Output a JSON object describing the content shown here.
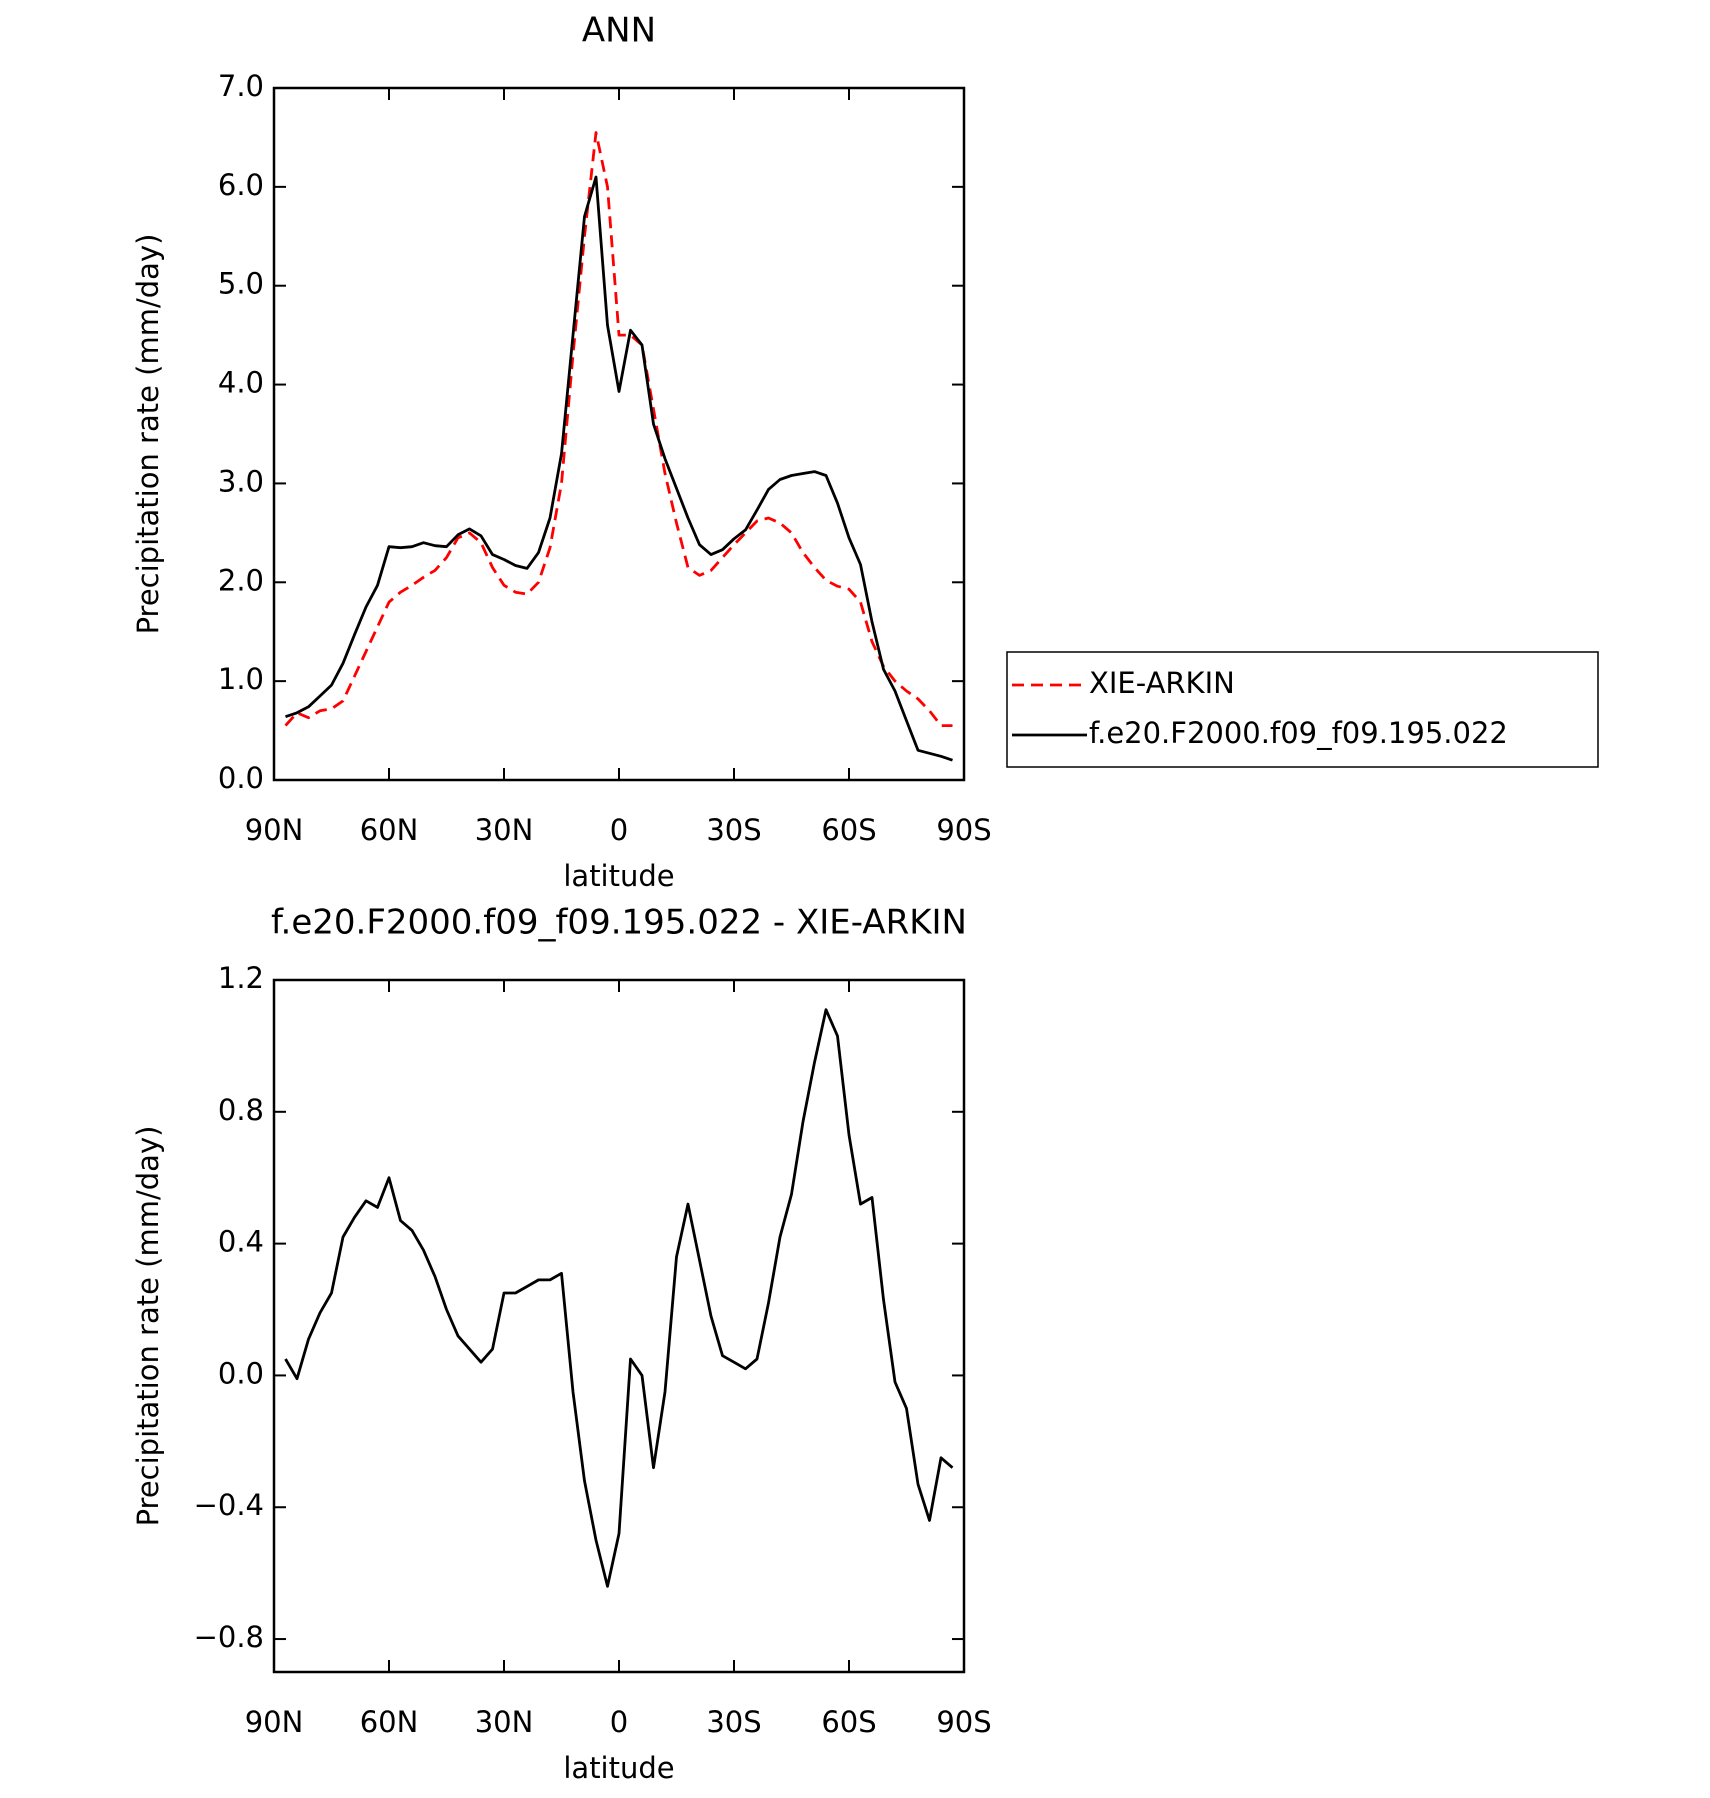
{
  "chart_data": [
    {
      "type": "line",
      "title": "ANN",
      "x_label": "latitude",
      "y_label": "Precipitation rate (mm/day)",
      "x": [
        87,
        84,
        81,
        78,
        75,
        72,
        69,
        66,
        63,
        60,
        57,
        54,
        51,
        48,
        45,
        42,
        39,
        36,
        33,
        30,
        27,
        24,
        21,
        18,
        15,
        12,
        9,
        6,
        3,
        0,
        -3,
        -6,
        -9,
        -12,
        -15,
        -18,
        -21,
        -24,
        -27,
        -30,
        -33,
        -36,
        -39,
        -42,
        -45,
        -48,
        -51,
        -54,
        -57,
        -60,
        -63,
        -66,
        -69,
        -72,
        -75,
        -78,
        -81,
        -84,
        -87
      ],
      "xlim": [
        90,
        -90
      ],
      "xticks": [
        {
          "value": 90,
          "label": "90N"
        },
        {
          "value": 60,
          "label": "60N"
        },
        {
          "value": 30,
          "label": "30N"
        },
        0,
        {
          "value": -30,
          "label": "30S"
        },
        {
          "value": -60,
          "label": "60S"
        },
        {
          "value": -90,
          "label": "90S"
        }
      ],
      "ylim": [
        0,
        7
      ],
      "yticks": [
        {
          "value": 0,
          "label": "0.0"
        },
        {
          "value": 1,
          "label": "1.0"
        },
        {
          "value": 2,
          "label": "2.0"
        },
        {
          "value": 3,
          "label": "3.0"
        },
        {
          "value": 4,
          "label": "4.0"
        },
        {
          "value": 5,
          "label": "5.0"
        },
        {
          "value": 6,
          "label": "6.0"
        },
        {
          "value": 7,
          "label": "7.0"
        }
      ],
      "legend": "right",
      "series": [
        {
          "name": "XIE-ARKIN",
          "color": "#ff0000",
          "line_style": "dashed",
          "values": [
            0.55,
            0.68,
            0.63,
            0.7,
            0.72,
            0.8,
            1.05,
            1.3,
            1.55,
            1.8,
            1.9,
            1.97,
            2.05,
            2.12,
            2.25,
            2.45,
            2.5,
            2.4,
            2.15,
            1.97,
            1.9,
            1.88,
            2.0,
            2.35,
            3.0,
            4.3,
            5.5,
            6.55,
            6.0,
            4.5,
            4.5,
            4.4,
            3.75,
            3.1,
            2.6,
            2.15,
            2.07,
            2.12,
            2.25,
            2.38,
            2.5,
            2.62,
            2.65,
            2.6,
            2.5,
            2.3,
            2.15,
            2.02,
            1.96,
            1.93,
            1.8,
            1.4,
            1.15,
            1.0,
            0.9,
            0.82,
            0.7,
            0.55,
            0.55
          ]
        },
        {
          "name": "f.e20.F2000.f09_f09.195.022",
          "color": "#000000",
          "line_style": "solid",
          "values": [
            0.64,
            0.68,
            0.74,
            0.85,
            0.96,
            1.18,
            1.47,
            1.75,
            1.97,
            2.36,
            2.35,
            2.36,
            2.4,
            2.37,
            2.36,
            2.48,
            2.54,
            2.47,
            2.28,
            2.23,
            2.17,
            2.14,
            2.3,
            2.65,
            3.3,
            4.5,
            5.7,
            6.1,
            4.6,
            3.93,
            4.55,
            4.4,
            3.6,
            3.25,
            2.95,
            2.65,
            2.38,
            2.28,
            2.33,
            2.44,
            2.53,
            2.73,
            2.94,
            3.04,
            3.08,
            3.1,
            3.12,
            3.08,
            2.8,
            2.45,
            2.18,
            1.6,
            1.12,
            0.9,
            0.6,
            0.3,
            0.27,
            0.24,
            0.2
          ]
        }
      ]
    },
    {
      "type": "line",
      "title": "f.e20.F2000.f09_f09.195.022 - XIE-ARKIN",
      "x_label": "latitude",
      "y_label": "Precipitation rate (mm/day)",
      "x": [
        87,
        84,
        81,
        78,
        75,
        72,
        69,
        66,
        63,
        60,
        57,
        54,
        51,
        48,
        45,
        42,
        39,
        36,
        33,
        30,
        27,
        24,
        21,
        18,
        15,
        12,
        9,
        6,
        3,
        0,
        -3,
        -6,
        -9,
        -12,
        -15,
        -18,
        -21,
        -24,
        -27,
        -30,
        -33,
        -36,
        -39,
        -42,
        -45,
        -48,
        -51,
        -54,
        -57,
        -60,
        -63,
        -66,
        -69,
        -72,
        -75,
        -78,
        -81,
        -84,
        -87
      ],
      "xlim": [
        90,
        -90
      ],
      "xticks": [
        {
          "value": 90,
          "label": "90N"
        },
        {
          "value": 60,
          "label": "60N"
        },
        {
          "value": 30,
          "label": "30N"
        },
        0,
        {
          "value": -30,
          "label": "30S"
        },
        {
          "value": -60,
          "label": "60S"
        },
        {
          "value": -90,
          "label": "90S"
        }
      ],
      "ylim": [
        -0.9,
        1.2
      ],
      "yticks": [
        {
          "value": -0.8,
          "label": "−0.8"
        },
        {
          "value": -0.4,
          "label": "−0.4"
        },
        {
          "value": 0,
          "label": "0.0"
        },
        0.4,
        0.8,
        1.2
      ],
      "series": [
        {
          "color": "#000000",
          "line_style": "solid",
          "values": [
            0.05,
            -0.01,
            0.11,
            0.19,
            0.25,
            0.42,
            0.48,
            0.53,
            0.51,
            0.6,
            0.47,
            0.44,
            0.38,
            0.3,
            0.2,
            0.12,
            0.08,
            0.04,
            0.08,
            0.25,
            0.25,
            0.27,
            0.29,
            0.29,
            0.31,
            -0.05,
            -0.32,
            -0.5,
            -0.64,
            -0.48,
            0.05,
            0.0,
            -0.28,
            -0.05,
            0.36,
            0.52,
            0.35,
            0.18,
            0.06,
            0.04,
            0.02,
            0.05,
            0.22,
            0.42,
            0.55,
            0.77,
            0.95,
            1.11,
            1.03,
            0.73,
            0.52,
            0.54,
            0.23,
            -0.02,
            -0.1,
            -0.33,
            -0.44,
            -0.25,
            -0.28
          ]
        }
      ]
    }
  ]
}
